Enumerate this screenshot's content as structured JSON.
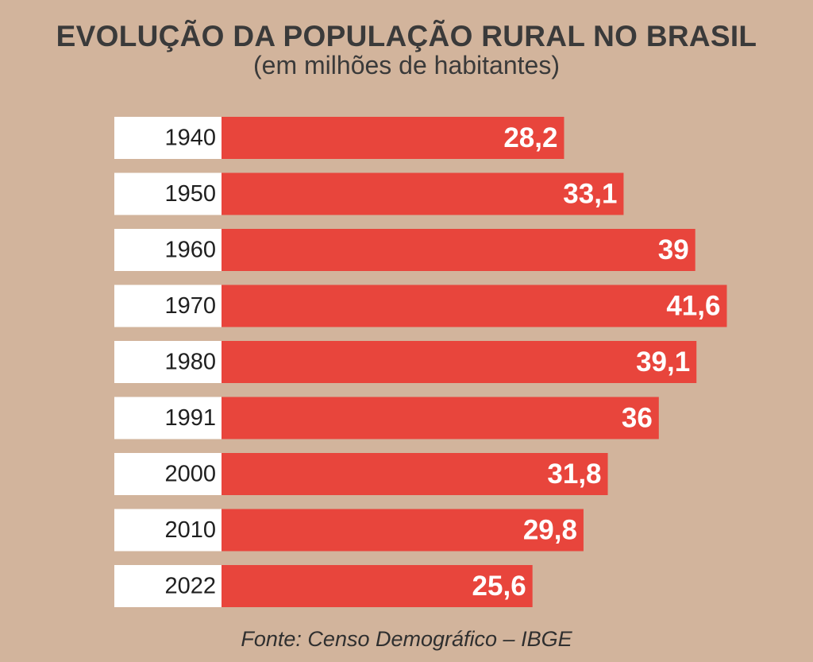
{
  "colors": {
    "background": "#d2b49c",
    "bar": "#e8453c",
    "label_box": "#ffffff",
    "title_text": "#3a3a3a",
    "value_text": "#ffffff"
  },
  "chart_data": {
    "type": "bar",
    "orientation": "horizontal",
    "title": "EVOLUÇÃO DA POPULAÇÃO RURAL NO BRASIL",
    "subtitle": "(em milhões de habitantes)",
    "categories": [
      "1940",
      "1950",
      "1960",
      "1970",
      "1980",
      "1991",
      "2000",
      "2010",
      "2022"
    ],
    "values": [
      28.2,
      33.1,
      39,
      41.6,
      39.1,
      36,
      31.8,
      29.8,
      25.6
    ],
    "value_labels": [
      "28,2",
      "33,1",
      "39",
      "41,6",
      "39,1",
      "36",
      "31,8",
      "29,8",
      "25,6"
    ],
    "xlabel": "",
    "ylabel": "",
    "grid": false,
    "legend": "none",
    "source": "Fonte: Censo Demográfico – IBGE"
  }
}
